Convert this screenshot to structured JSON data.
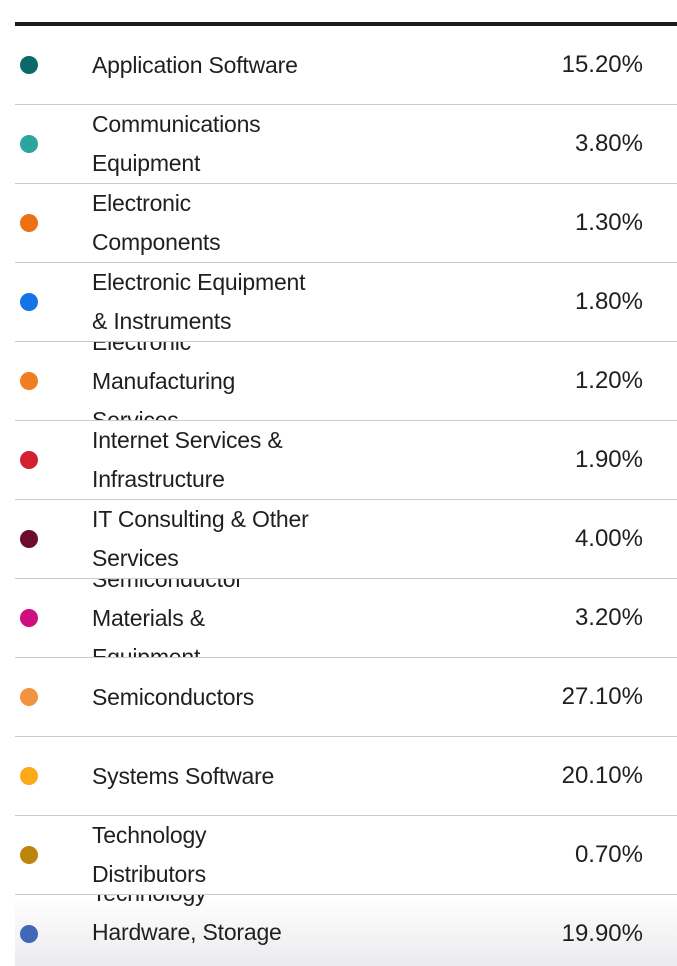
{
  "chart_data": {
    "type": "table",
    "title": "",
    "categories": [
      "Application Software",
      "Communications Equipment",
      "Electronic Components",
      "Electronic Equipment & Instruments",
      "Electronic Manufacturing Services",
      "Internet Services & Infrastructure",
      "IT Consulting & Other Services",
      "Semiconductor Materials & Equipment",
      "Semiconductors",
      "Systems Software",
      "Technology Distributors",
      "Technology Hardware, Storage"
    ],
    "values": [
      15.2,
      3.8,
      1.3,
      1.8,
      1.2,
      1.9,
      4.0,
      3.2,
      27.1,
      20.1,
      0.7,
      19.9
    ],
    "value_labels": [
      "15.20%",
      "3.80%",
      "1.30%",
      "1.80%",
      "1.20%",
      "1.90%",
      "4.00%",
      "3.20%",
      "27.10%",
      "20.10%",
      "0.70%",
      "19.90%"
    ],
    "colors": [
      "#0B6A67",
      "#2BA69F",
      "#EE7014",
      "#1473E6",
      "#F07D1F",
      "#D02031",
      "#6E0D2B",
      "#D00E7E",
      "#F2943F",
      "#FBA918",
      "#BD850A",
      "#4168B8"
    ],
    "legend_position": "inline color dots in table rows",
    "layout": "legend table: color dot, category label, right-aligned percent"
  },
  "table": {
    "rows": [
      {
        "label": "Application Software",
        "percent": "15.20%",
        "dot_color": "#0B6A67"
      },
      {
        "label": "Communications Equipment",
        "percent": "3.80%",
        "dot_color": "#2BA69F"
      },
      {
        "label": "Electronic Components",
        "percent": "1.30%",
        "dot_color": "#EE7014"
      },
      {
        "label": "Electronic Equipment & Instruments",
        "percent": "1.80%",
        "dot_color": "#1473E6"
      },
      {
        "label": "Electronic Manufacturing Services",
        "percent": "1.20%",
        "dot_color": "#F07D1F"
      },
      {
        "label": "Internet Services & Infrastructure",
        "percent": "1.90%",
        "dot_color": "#D02031"
      },
      {
        "label": "IT Consulting & Other Services",
        "percent": "4.00%",
        "dot_color": "#6E0D2B"
      },
      {
        "label": "Semiconductor Materials & Equipment",
        "percent": "3.20%",
        "dot_color": "#D00E7E"
      },
      {
        "label": "Semiconductors",
        "percent": "27.10%",
        "dot_color": "#F2943F"
      },
      {
        "label": "Systems Software",
        "percent": "20.10%",
        "dot_color": "#FBA918"
      },
      {
        "label": "Technology Distributors",
        "percent": "0.70%",
        "dot_color": "#BD850A"
      },
      {
        "label": "Technology Hardware, Storage",
        "percent": "19.90%",
        "dot_color": "#4168B8"
      }
    ]
  },
  "style": {
    "divider_color": "#cbcbcb",
    "top_border_color": "#1b1b1b",
    "text_color": "#1f1f1f",
    "fade_color": "#e9e9ec"
  }
}
